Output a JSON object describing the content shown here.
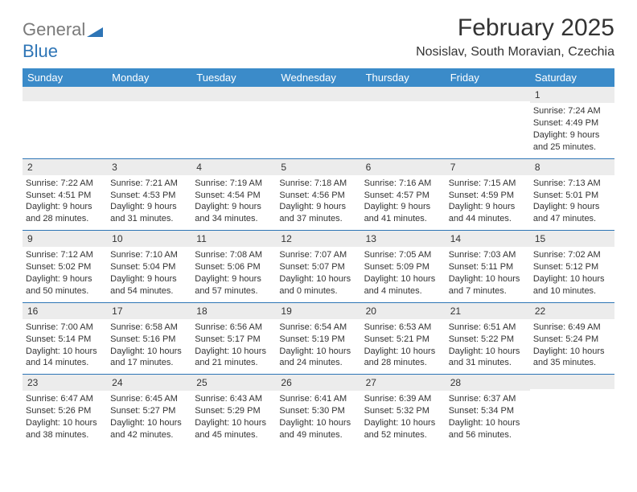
{
  "logo": {
    "word1": "General",
    "word2": "Blue",
    "gray_color": "#7a7a7a",
    "blue_color": "#2e75b6"
  },
  "title": "February 2025",
  "location": "Nosislav, South Moravian, Czechia",
  "colors": {
    "header_band": "#3b8bc9",
    "header_text": "#ffffff",
    "daynum_band": "#ececec",
    "week_divider": "#2e75b6",
    "body_text": "#333333",
    "background": "#ffffff"
  },
  "typography": {
    "title_fontsize": 30,
    "location_fontsize": 16,
    "dayhead_fontsize": 13,
    "cell_fontsize": 11
  },
  "day_headers": [
    "Sunday",
    "Monday",
    "Tuesday",
    "Wednesday",
    "Thursday",
    "Friday",
    "Saturday"
  ],
  "weeks": [
    [
      {
        "day": "",
        "sunrise": "",
        "sunset": "",
        "daylight1": "",
        "daylight2": ""
      },
      {
        "day": "",
        "sunrise": "",
        "sunset": "",
        "daylight1": "",
        "daylight2": ""
      },
      {
        "day": "",
        "sunrise": "",
        "sunset": "",
        "daylight1": "",
        "daylight2": ""
      },
      {
        "day": "",
        "sunrise": "",
        "sunset": "",
        "daylight1": "",
        "daylight2": ""
      },
      {
        "day": "",
        "sunrise": "",
        "sunset": "",
        "daylight1": "",
        "daylight2": ""
      },
      {
        "day": "",
        "sunrise": "",
        "sunset": "",
        "daylight1": "",
        "daylight2": ""
      },
      {
        "day": "1",
        "sunrise": "Sunrise: 7:24 AM",
        "sunset": "Sunset: 4:49 PM",
        "daylight1": "Daylight: 9 hours",
        "daylight2": "and 25 minutes."
      }
    ],
    [
      {
        "day": "2",
        "sunrise": "Sunrise: 7:22 AM",
        "sunset": "Sunset: 4:51 PM",
        "daylight1": "Daylight: 9 hours",
        "daylight2": "and 28 minutes."
      },
      {
        "day": "3",
        "sunrise": "Sunrise: 7:21 AM",
        "sunset": "Sunset: 4:53 PM",
        "daylight1": "Daylight: 9 hours",
        "daylight2": "and 31 minutes."
      },
      {
        "day": "4",
        "sunrise": "Sunrise: 7:19 AM",
        "sunset": "Sunset: 4:54 PM",
        "daylight1": "Daylight: 9 hours",
        "daylight2": "and 34 minutes."
      },
      {
        "day": "5",
        "sunrise": "Sunrise: 7:18 AM",
        "sunset": "Sunset: 4:56 PM",
        "daylight1": "Daylight: 9 hours",
        "daylight2": "and 37 minutes."
      },
      {
        "day": "6",
        "sunrise": "Sunrise: 7:16 AM",
        "sunset": "Sunset: 4:57 PM",
        "daylight1": "Daylight: 9 hours",
        "daylight2": "and 41 minutes."
      },
      {
        "day": "7",
        "sunrise": "Sunrise: 7:15 AM",
        "sunset": "Sunset: 4:59 PM",
        "daylight1": "Daylight: 9 hours",
        "daylight2": "and 44 minutes."
      },
      {
        "day": "8",
        "sunrise": "Sunrise: 7:13 AM",
        "sunset": "Sunset: 5:01 PM",
        "daylight1": "Daylight: 9 hours",
        "daylight2": "and 47 minutes."
      }
    ],
    [
      {
        "day": "9",
        "sunrise": "Sunrise: 7:12 AM",
        "sunset": "Sunset: 5:02 PM",
        "daylight1": "Daylight: 9 hours",
        "daylight2": "and 50 minutes."
      },
      {
        "day": "10",
        "sunrise": "Sunrise: 7:10 AM",
        "sunset": "Sunset: 5:04 PM",
        "daylight1": "Daylight: 9 hours",
        "daylight2": "and 54 minutes."
      },
      {
        "day": "11",
        "sunrise": "Sunrise: 7:08 AM",
        "sunset": "Sunset: 5:06 PM",
        "daylight1": "Daylight: 9 hours",
        "daylight2": "and 57 minutes."
      },
      {
        "day": "12",
        "sunrise": "Sunrise: 7:07 AM",
        "sunset": "Sunset: 5:07 PM",
        "daylight1": "Daylight: 10 hours",
        "daylight2": "and 0 minutes."
      },
      {
        "day": "13",
        "sunrise": "Sunrise: 7:05 AM",
        "sunset": "Sunset: 5:09 PM",
        "daylight1": "Daylight: 10 hours",
        "daylight2": "and 4 minutes."
      },
      {
        "day": "14",
        "sunrise": "Sunrise: 7:03 AM",
        "sunset": "Sunset: 5:11 PM",
        "daylight1": "Daylight: 10 hours",
        "daylight2": "and 7 minutes."
      },
      {
        "day": "15",
        "sunrise": "Sunrise: 7:02 AM",
        "sunset": "Sunset: 5:12 PM",
        "daylight1": "Daylight: 10 hours",
        "daylight2": "and 10 minutes."
      }
    ],
    [
      {
        "day": "16",
        "sunrise": "Sunrise: 7:00 AM",
        "sunset": "Sunset: 5:14 PM",
        "daylight1": "Daylight: 10 hours",
        "daylight2": "and 14 minutes."
      },
      {
        "day": "17",
        "sunrise": "Sunrise: 6:58 AM",
        "sunset": "Sunset: 5:16 PM",
        "daylight1": "Daylight: 10 hours",
        "daylight2": "and 17 minutes."
      },
      {
        "day": "18",
        "sunrise": "Sunrise: 6:56 AM",
        "sunset": "Sunset: 5:17 PM",
        "daylight1": "Daylight: 10 hours",
        "daylight2": "and 21 minutes."
      },
      {
        "day": "19",
        "sunrise": "Sunrise: 6:54 AM",
        "sunset": "Sunset: 5:19 PM",
        "daylight1": "Daylight: 10 hours",
        "daylight2": "and 24 minutes."
      },
      {
        "day": "20",
        "sunrise": "Sunrise: 6:53 AM",
        "sunset": "Sunset: 5:21 PM",
        "daylight1": "Daylight: 10 hours",
        "daylight2": "and 28 minutes."
      },
      {
        "day": "21",
        "sunrise": "Sunrise: 6:51 AM",
        "sunset": "Sunset: 5:22 PM",
        "daylight1": "Daylight: 10 hours",
        "daylight2": "and 31 minutes."
      },
      {
        "day": "22",
        "sunrise": "Sunrise: 6:49 AM",
        "sunset": "Sunset: 5:24 PM",
        "daylight1": "Daylight: 10 hours",
        "daylight2": "and 35 minutes."
      }
    ],
    [
      {
        "day": "23",
        "sunrise": "Sunrise: 6:47 AM",
        "sunset": "Sunset: 5:26 PM",
        "daylight1": "Daylight: 10 hours",
        "daylight2": "and 38 minutes."
      },
      {
        "day": "24",
        "sunrise": "Sunrise: 6:45 AM",
        "sunset": "Sunset: 5:27 PM",
        "daylight1": "Daylight: 10 hours",
        "daylight2": "and 42 minutes."
      },
      {
        "day": "25",
        "sunrise": "Sunrise: 6:43 AM",
        "sunset": "Sunset: 5:29 PM",
        "daylight1": "Daylight: 10 hours",
        "daylight2": "and 45 minutes."
      },
      {
        "day": "26",
        "sunrise": "Sunrise: 6:41 AM",
        "sunset": "Sunset: 5:30 PM",
        "daylight1": "Daylight: 10 hours",
        "daylight2": "and 49 minutes."
      },
      {
        "day": "27",
        "sunrise": "Sunrise: 6:39 AM",
        "sunset": "Sunset: 5:32 PM",
        "daylight1": "Daylight: 10 hours",
        "daylight2": "and 52 minutes."
      },
      {
        "day": "28",
        "sunrise": "Sunrise: 6:37 AM",
        "sunset": "Sunset: 5:34 PM",
        "daylight1": "Daylight: 10 hours",
        "daylight2": "and 56 minutes."
      },
      {
        "day": "",
        "sunrise": "",
        "sunset": "",
        "daylight1": "",
        "daylight2": ""
      }
    ]
  ]
}
